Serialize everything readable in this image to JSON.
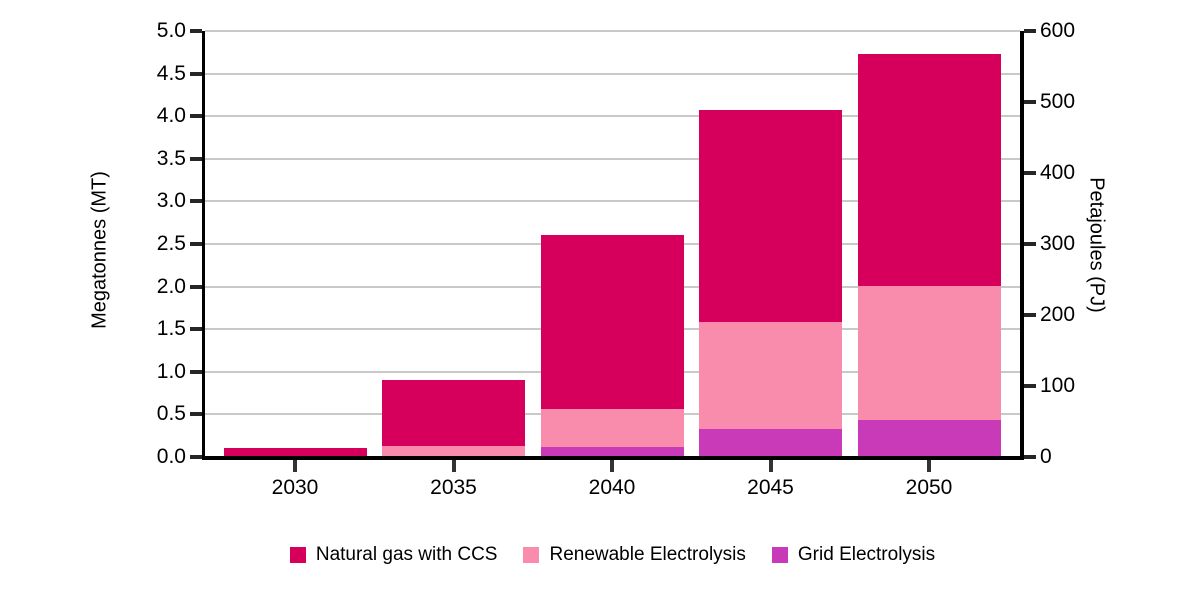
{
  "chart_data": {
    "type": "bar",
    "stacked": true,
    "categories": [
      "2030",
      "2035",
      "2040",
      "2045",
      "2050"
    ],
    "series": [
      {
        "name": "Natural gas with CCS",
        "color": "#d6005c",
        "values_mt": [
          0.11,
          0.77,
          2.04,
          2.49,
          2.72
        ]
      },
      {
        "name": "Renewable Electrolysis",
        "color": "#f98bad",
        "values_mt": [
          0,
          0.13,
          0.44,
          1.25,
          1.58
        ]
      },
      {
        "name": "Grid Electrolysis",
        "color": "#c83ab8",
        "values_mt": [
          0,
          0,
          0.12,
          0.33,
          0.43
        ]
      }
    ],
    "stack_order_bottom_to_top": [
      "Grid Electrolysis",
      "Renewable Electrolysis",
      "Natural gas with CCS"
    ],
    "totals_mt": [
      0.11,
      0.9,
      2.6,
      4.07,
      4.73
    ],
    "axes": {
      "left": {
        "label": "Megatonnes (MT)",
        "min": 0,
        "max": 5,
        "tick_labels": [
          "0.0",
          "0.5",
          "1.0",
          "1.5",
          "2.0",
          "2.5",
          "3.0",
          "3.5",
          "4.0",
          "4.5",
          "5.0"
        ]
      },
      "right": {
        "label": "Petajoules (PJ)",
        "min": 0,
        "max": 600,
        "tick_labels": [
          "0",
          "100",
          "200",
          "300",
          "400",
          "500",
          "600"
        ]
      },
      "x": {
        "tick_labels": [
          "2030",
          "2035",
          "2040",
          "2045",
          "2050"
        ]
      }
    },
    "legend": {
      "position": "bottom",
      "items": [
        {
          "label": "Natural gas with CCS",
          "color": "#d6005c"
        },
        {
          "label": "Renewable Electrolysis",
          "color": "#f98bad"
        },
        {
          "label": "Grid Electrolysis",
          "color": "#c83ab8"
        }
      ]
    },
    "grid": {
      "horizontal": true,
      "color": "#c9c9c9"
    },
    "colors": {
      "axis": "#000000",
      "tick": "#262626",
      "text": "#000000",
      "background": "#ffffff"
    }
  }
}
